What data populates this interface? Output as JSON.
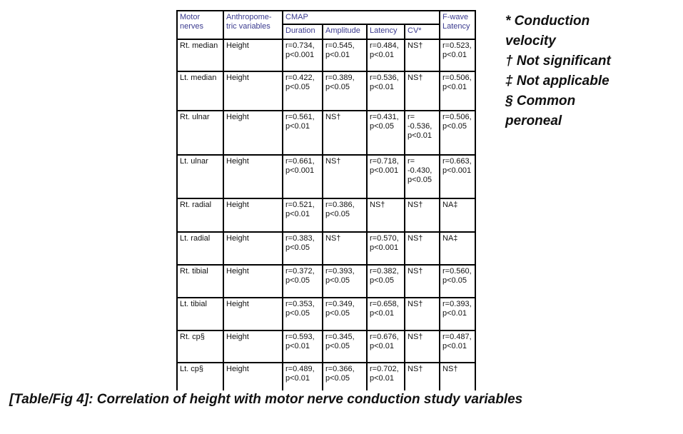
{
  "table": {
    "headers": {
      "motor_nerves": "Motor\nnerves",
      "anthropometric": "Anthropome-\ntric variables",
      "cmap": "CMAP",
      "duration": "Duration",
      "amplitude": "Amplitude",
      "latency": "Latency",
      "cv": "CV*",
      "fwave": "F-wave\nLatency"
    },
    "rows": [
      {
        "nerve": "Rt. median",
        "variable": "Height",
        "duration": "r=0.734,\np<0.001",
        "amplitude": "r=0.545,\np<0.01",
        "latency": "r=0.484,\np<0.01",
        "cv": "NS†",
        "fwave": "r=0.523,\np<0.01"
      },
      {
        "nerve": "Lt. median",
        "variable": "Height",
        "duration": "r=0.422,\np<0.05",
        "amplitude": "r=0.389,\np<0.05",
        "latency": "r=0.536,\np<0.01",
        "cv": "NS†",
        "fwave": "r=0.506,\np<0.01"
      },
      {
        "nerve": "Rt. ulnar",
        "variable": "Height",
        "duration": "r=0.561,\np<0.01",
        "amplitude": "NS†",
        "latency": "r=0.431,\np<0.05",
        "cv": "r=\n-0.536,\np<0.01",
        "fwave": "r=0.506,\np<0.05"
      },
      {
        "nerve": "Lt. ulnar",
        "variable": "Height",
        "duration": "r=0.661,\np<0.001",
        "amplitude": "NS†",
        "latency": "r=0.718,\np<0.001",
        "cv": "r=\n-0.430,\np<0.05",
        "fwave": "r=0.663,\np<0.001"
      },
      {
        "nerve": "Rt. radial",
        "variable": "Height",
        "duration": "r=0.521,\np<0.01",
        "amplitude": "r=0.386,\np<0.05",
        "latency": "NS†",
        "cv": "NS†",
        "fwave": "NA‡"
      },
      {
        "nerve": "Lt. radial",
        "variable": "Height",
        "duration": "r=0.383,\np<0.05",
        "amplitude": "NS†",
        "latency": "r=0.570,\np<0.001",
        "cv": "NS†",
        "fwave": "NA‡"
      },
      {
        "nerve": "Rt. tibial",
        "variable": "Height",
        "duration": "r=0.372,\np<0.05",
        "amplitude": "r=0.393,\np<0.05",
        "latency": "r=0.382,\np<0.05",
        "cv": "NS†",
        "fwave": "r=0.560,\np<0.05"
      },
      {
        "nerve": "Lt. tibial",
        "variable": "Height",
        "duration": "r=0.353,\np<0.05",
        "amplitude": "r=0.349,\np<0.05",
        "latency": "r=0.658,\np<0.01",
        "cv": "NS†",
        "fwave": "r=0.393,\np<0.01"
      },
      {
        "nerve": "Rt. cp§",
        "variable": "Height",
        "duration": "r=0.593,\np<0.01",
        "amplitude": "r=0.345,\np<0.05",
        "latency": "r=0.676,\np<0.01",
        "cv": "NS†",
        "fwave": "r=0.487,\np<0.01"
      },
      {
        "nerve": "Lt. cp§",
        "variable": "Height",
        "duration": "r=0.489,\np<0.01",
        "amplitude": "r=0.366,\np<0.05",
        "latency": "r=0.702,\np<0.01",
        "cv": "NS†",
        "fwave": "NS†"
      }
    ]
  },
  "legend": {
    "items": [
      "* Conduction velocity",
      "† Not significant",
      "‡ Not applicable",
      "§ Common peroneal"
    ]
  },
  "caption": "[Table/Fig 4]: Correlation of height with motor nerve conduction study variables",
  "colors": {
    "header_text": "#3b3b8f",
    "border": "#000000",
    "body_text": "#111111"
  }
}
